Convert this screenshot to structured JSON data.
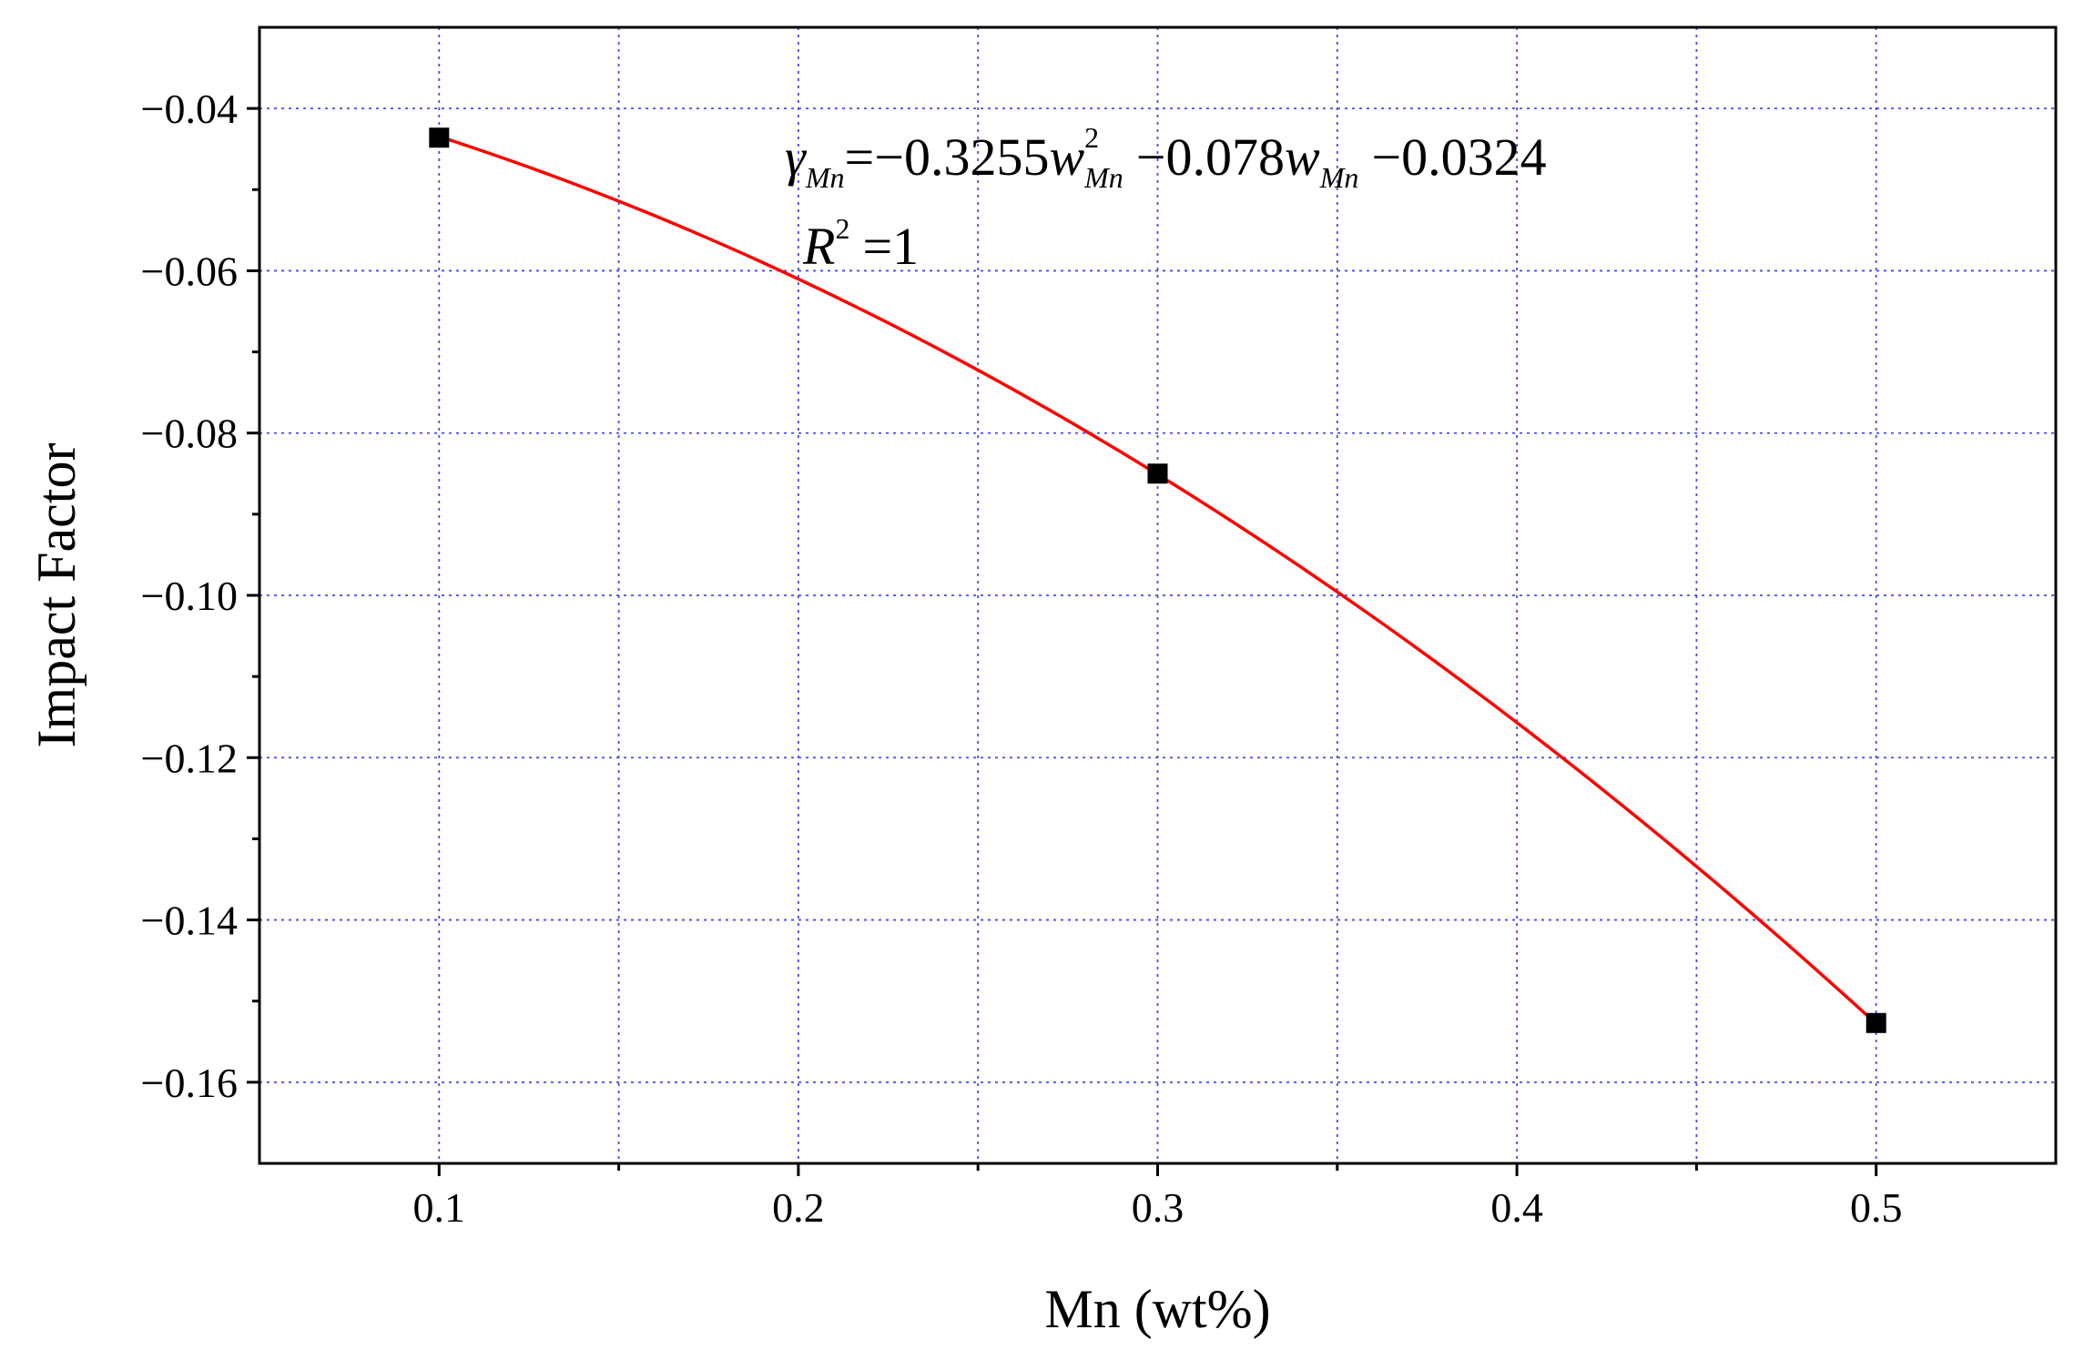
{
  "chart_data": {
    "type": "scatter",
    "xlabel": "Mn (wt%)",
    "ylabel": "Impact Factor",
    "xlim": [
      0.05,
      0.55
    ],
    "ylim": [
      -0.17,
      -0.03
    ],
    "x_ticks": [
      0.1,
      0.2,
      0.3,
      0.4,
      0.5
    ],
    "x_tick_labels": [
      "0.1",
      "0.2",
      "0.3",
      "0.4",
      "0.5"
    ],
    "y_ticks": [
      -0.04,
      -0.06,
      -0.08,
      -0.1,
      -0.12,
      -0.14,
      -0.16
    ],
    "y_tick_labels": [
      "−0.04",
      "−0.06",
      "−0.08",
      "−0.10",
      "−0.12",
      "−0.14",
      "−0.16"
    ],
    "grid": true,
    "series": [
      {
        "kind": "points",
        "marker": "square",
        "color": "#000000",
        "x": [
          0.1,
          0.3,
          0.5
        ],
        "y": [
          -0.0436,
          -0.085,
          -0.1527
        ]
      },
      {
        "kind": "fit",
        "color": "#ff0000",
        "fit_coefficients": {
          "a": -0.3255,
          "b": -0.078,
          "c": -0.0324
        },
        "x_range": [
          0.1,
          0.5
        ]
      }
    ],
    "annotation": {
      "symbol": "γ",
      "sub": "Mn",
      "eq": "=",
      "c1": "−0.3255",
      "var": "w",
      "sup2": "2",
      "op1": "−",
      "c2": "0.078",
      "op2": "−",
      "c3": "0.0324",
      "r_symbol": "R",
      "r_sup": "2",
      "r_value": "=1"
    }
  },
  "colors": {
    "grid": "#4a4ae6",
    "fit_line": "#ff0000",
    "markers": "#000000",
    "axis": "#000000"
  }
}
